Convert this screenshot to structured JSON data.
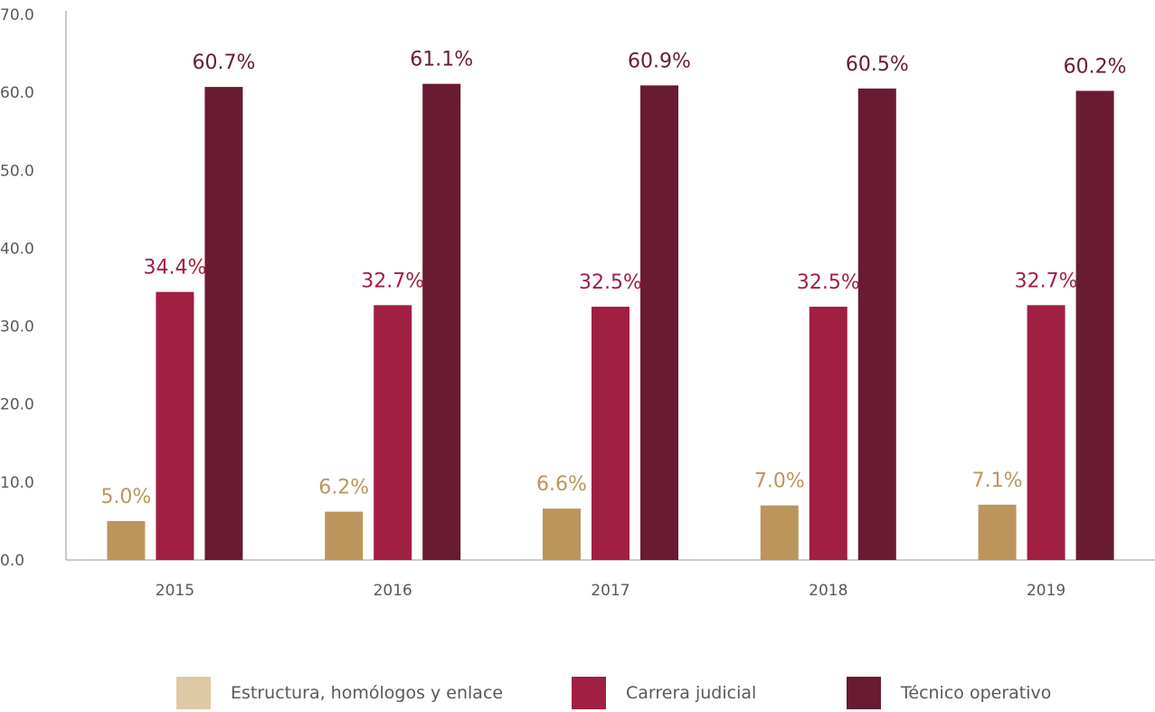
{
  "chart_data": {
    "type": "bar",
    "categories": [
      "2015",
      "2016",
      "2017",
      "2018",
      "2019"
    ],
    "yticks": [
      "0.0",
      "10.0",
      "20.0",
      "30.0",
      "40.0",
      "50.0",
      "60.0",
      "70.0"
    ],
    "ylim": [
      0,
      70
    ],
    "series": [
      {
        "name": "Estructura, homólogos y enlace",
        "values": [
          5.0,
          6.2,
          6.6,
          7.0,
          7.1
        ],
        "labels": [
          "5.0%",
          "6.2%",
          "6.6%",
          "7.0%",
          "7.1%"
        ],
        "color": "#BC955C",
        "legend_color": "#DDC9A3",
        "label_color": "#BC955C"
      },
      {
        "name": "Carrera judicial",
        "values": [
          34.4,
          32.7,
          32.5,
          32.5,
          32.7
        ],
        "labels": [
          "34.4%",
          "32.7%",
          "32.5%",
          "32.5%",
          "32.7%"
        ],
        "color": "#A11F43",
        "legend_color": "#A11F43",
        "label_color": "#A11F43"
      },
      {
        "name": "Técnico operativo",
        "values": [
          60.7,
          61.1,
          60.9,
          60.5,
          60.2
        ],
        "labels": [
          "60.7%",
          "61.1%",
          "60.9%",
          "60.5%",
          "60.2%"
        ],
        "color": "#691B31",
        "legend_color": "#691B31",
        "label_color": "#691B31"
      }
    ],
    "legend_position": "bottom",
    "grid": false
  }
}
